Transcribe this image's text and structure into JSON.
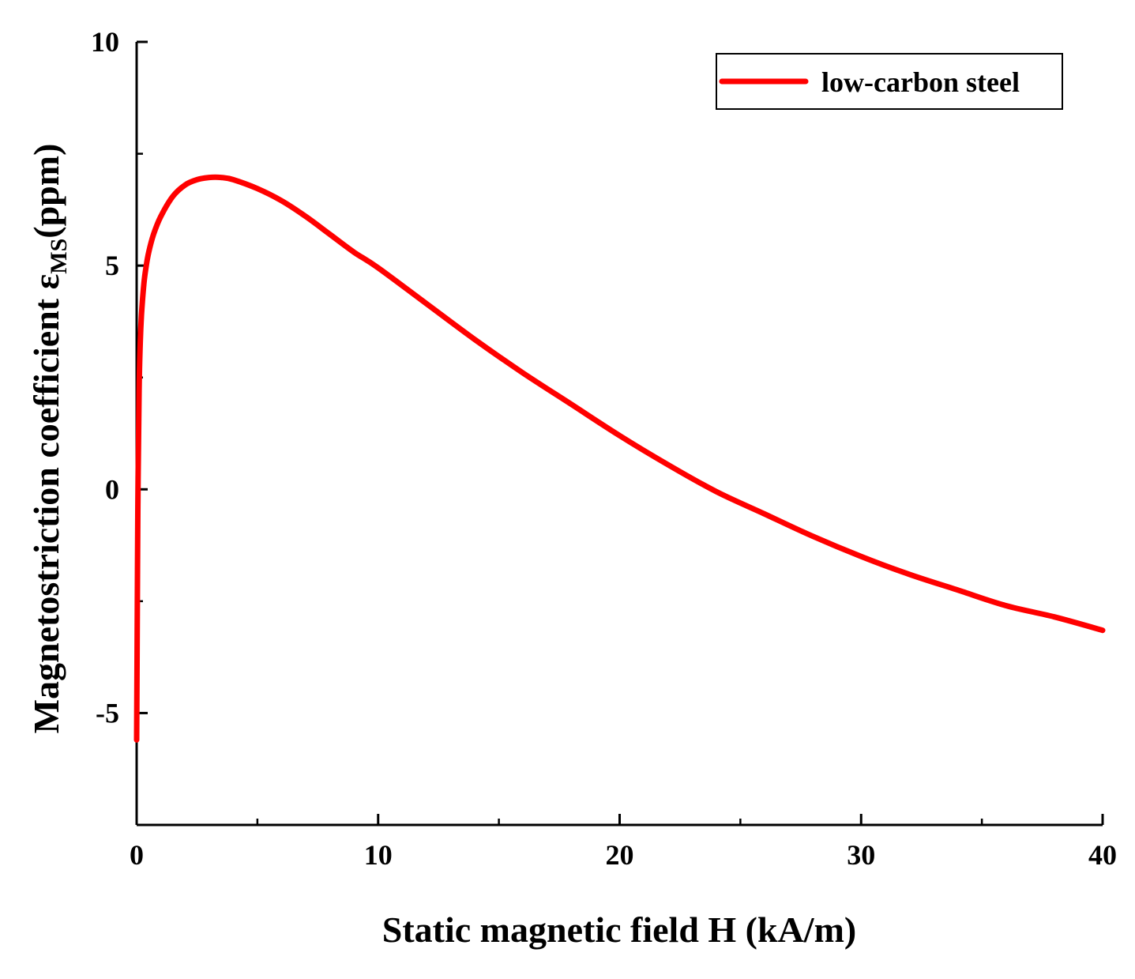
{
  "chart_data": {
    "type": "line",
    "title": "",
    "xlabel": "Static magnetic field H (kA/m)",
    "ylabel": {
      "prefix": "Magnetostriction coefficient ε",
      "subscript": "MS",
      "suffix": "(ppm)"
    },
    "xlim": [
      0,
      40
    ],
    "ylim": [
      -7.5,
      10
    ],
    "xticks": [
      0,
      10,
      20,
      30,
      40
    ],
    "xtick_labels": [
      "0",
      "10",
      "20",
      "30",
      "40"
    ],
    "yticks": [
      -5,
      0,
      5,
      10
    ],
    "ytick_labels": [
      "-5",
      "0",
      "5",
      "10"
    ],
    "grid": false,
    "legend_position": "top-right",
    "series": [
      {
        "name": "low-carbon steel",
        "color": "#ff0000",
        "x": [
          0,
          0.02,
          0.05,
          0.1,
          0.15,
          0.2,
          0.3,
          0.4,
          0.5,
          0.7,
          1.0,
          1.5,
          2.0,
          2.5,
          3.0,
          3.5,
          4.0,
          5.0,
          6.0,
          7.0,
          8.0,
          9.0,
          10.0,
          12.0,
          14.0,
          16.0,
          18.0,
          20.0,
          22.0,
          24.0,
          26.0,
          28.0,
          30.0,
          32.0,
          34.0,
          36.0,
          38.0,
          40.0
        ],
        "y": [
          -5.6,
          -3.5,
          -0.5,
          2.2,
          3.3,
          3.9,
          4.6,
          5.0,
          5.3,
          5.7,
          6.1,
          6.55,
          6.8,
          6.92,
          6.97,
          6.97,
          6.92,
          6.72,
          6.45,
          6.1,
          5.7,
          5.3,
          4.95,
          4.15,
          3.35,
          2.6,
          1.9,
          1.2,
          0.55,
          -0.05,
          -0.55,
          -1.05,
          -1.5,
          -1.9,
          -2.25,
          -2.6,
          -2.85,
          -3.15
        ]
      }
    ]
  }
}
